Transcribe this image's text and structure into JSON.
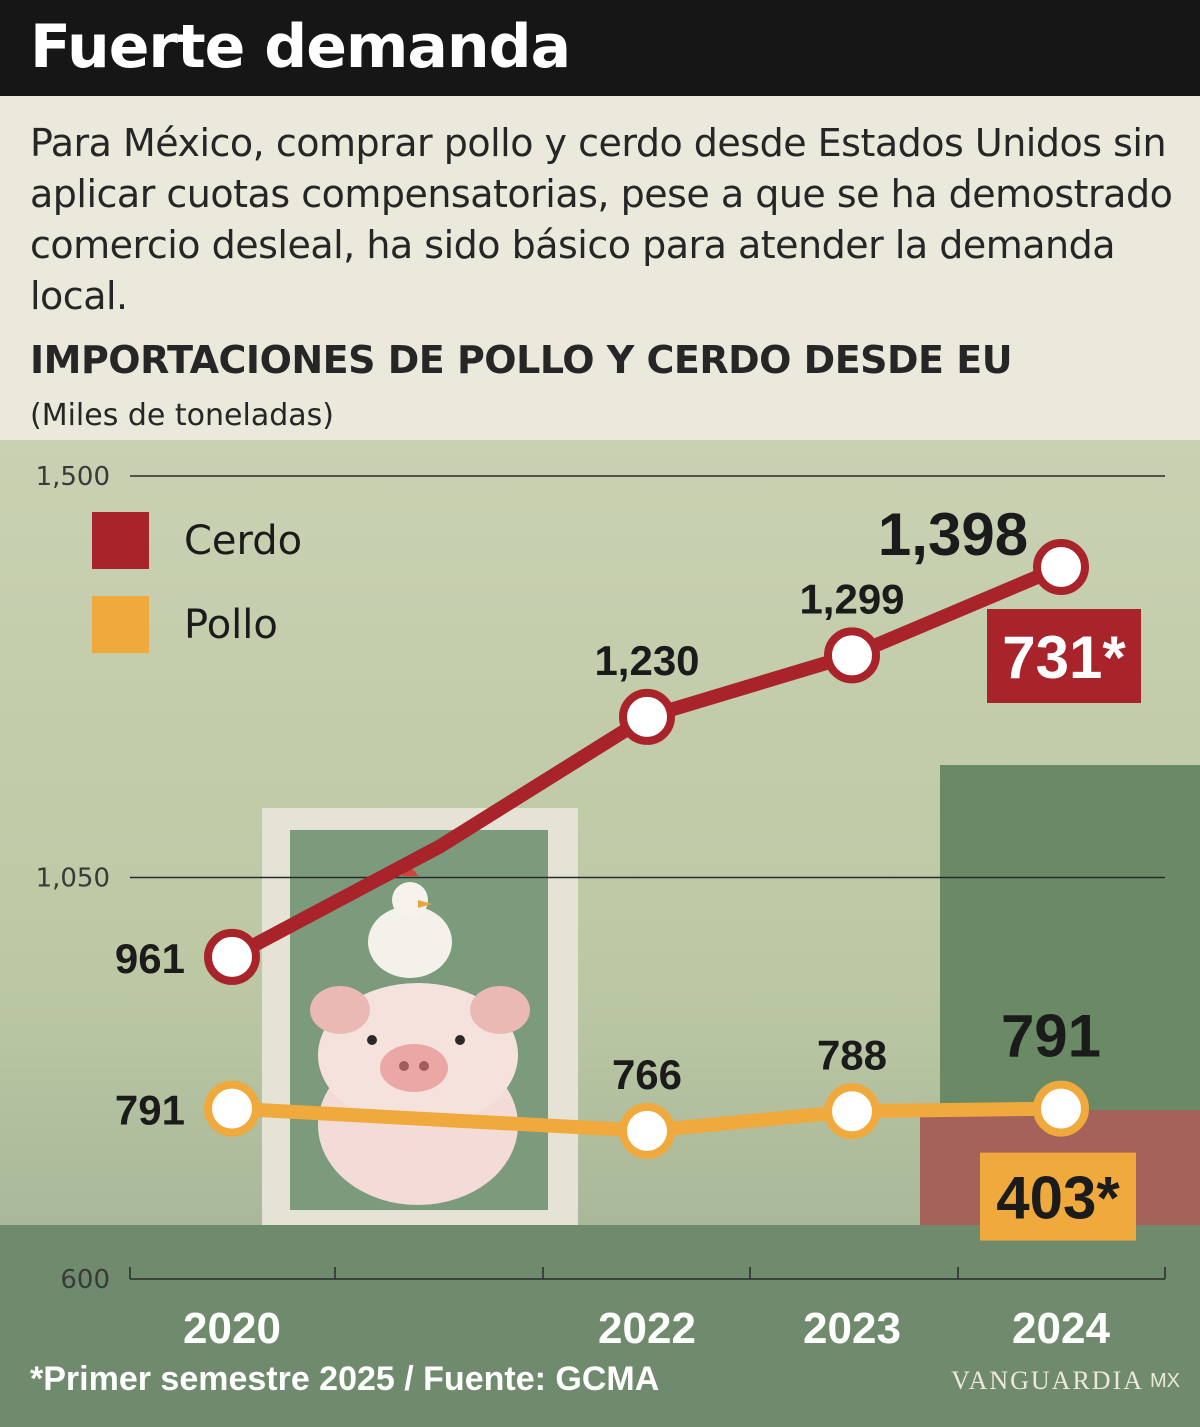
{
  "header": {
    "title": "Fuerte demanda",
    "intro": "Para México, comprar pollo y cerdo desde Estados Unidos sin aplicar cuotas compensatorias, pese a que se ha demostrado comercio desleal, ha sido básico para atender la demanda local.",
    "subtitle": "IMPORTACIONES DE POLLO Y CERDO DESDE EU",
    "unit": "(Miles de toneladas)"
  },
  "footer": {
    "note": "*Primer semestre 2025 / Fuente: GCMA",
    "brand": "VANGUARDIA",
    "brand_suffix": "MX"
  },
  "colors": {
    "cerdo": "#a8232a",
    "pollo": "#f0a93c",
    "header_bg": "#161616"
  },
  "chart_data": {
    "type": "line",
    "y_ticks": [
      "1,500",
      "1,050",
      "600"
    ],
    "ylim": [
      600,
      1500
    ],
    "x_tick_labels": [
      "2020",
      "2022",
      "2023",
      "2024"
    ],
    "grid": "horizontal at ticks",
    "legend_position": "top-left",
    "legend": [
      "Cerdo",
      "Pollo"
    ],
    "series": [
      {
        "name": "Cerdo",
        "x": [
          2020,
          2021,
          2022,
          2023,
          2024
        ],
        "values": [
          961,
          1085,
          1230,
          1299,
          1398
        ],
        "labels": [
          "961",
          "",
          "1,230",
          "1,299",
          "1,398"
        ],
        "extra_label": "731*"
      },
      {
        "name": "Pollo",
        "x": [
          2020,
          2022,
          2023,
          2024
        ],
        "values": [
          791,
          766,
          788,
          791
        ],
        "labels": [
          "791",
          "766",
          "788",
          "791"
        ],
        "extra_label": "403*"
      }
    ]
  }
}
